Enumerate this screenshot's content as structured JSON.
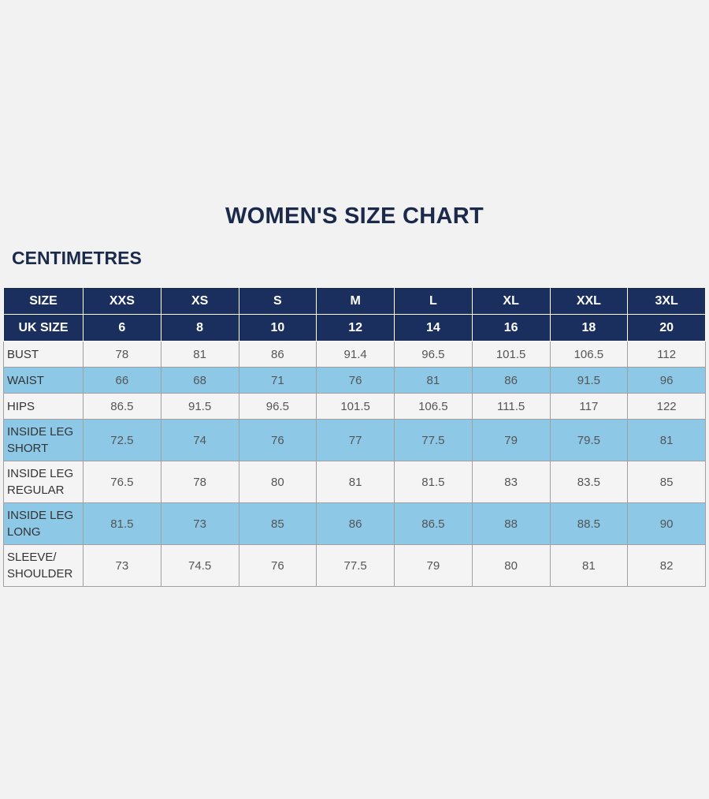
{
  "header": {
    "title": "WOMEN'S SIZE CHART",
    "subtitle": "CENTIMETRES"
  },
  "table": {
    "head": [
      [
        "SIZE",
        "XXS",
        "XS",
        "S",
        "M",
        "L",
        "XL",
        "XXL",
        "3XL"
      ],
      [
        "UK SIZE",
        "6",
        "8",
        "10",
        "12",
        "14",
        "16",
        "18",
        "20"
      ]
    ],
    "rows": [
      [
        "BUST",
        "78",
        "81",
        "86",
        "91.4",
        "96.5",
        "101.5",
        "106.5",
        "112"
      ],
      [
        "WAIST",
        "66",
        "68",
        "71",
        "76",
        "81",
        "86",
        "91.5",
        "96"
      ],
      [
        "HIPS",
        "86.5",
        "91.5",
        "96.5",
        "101.5",
        "106.5",
        "111.5",
        "117",
        "122"
      ],
      [
        "INSIDE LEG SHORT",
        "72.5",
        "74",
        "76",
        "77",
        "77.5",
        "79",
        "79.5",
        "81"
      ],
      [
        "INSIDE LEG REGULAR",
        "76.5",
        "78",
        "80",
        "81",
        "81.5",
        "83",
        "83.5",
        "85"
      ],
      [
        "INSIDE LEG LONG",
        "81.5",
        "73",
        "85",
        "86",
        "86.5",
        "88",
        "88.5",
        "90"
      ],
      [
        "SLEEVE/ SHOULDER",
        "73",
        "74.5",
        "76",
        "77.5",
        "79",
        "80",
        "81",
        "82"
      ]
    ]
  }
}
